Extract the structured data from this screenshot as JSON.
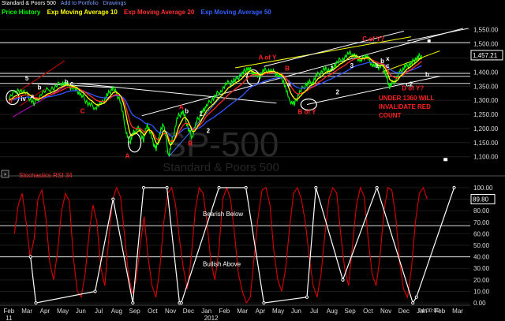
{
  "header": {
    "symbol_label": "Standard & Poors 500",
    "portfolio_link": "Add to Portfolio",
    "drawings_link": "Drawings"
  },
  "legend": [
    {
      "label": "Price History",
      "color": "#00ff00"
    },
    {
      "label": "Exp Moving Average 10",
      "color": "#ffff00"
    },
    {
      "label": "Exp Moving Average 20",
      "color": "#ff3030"
    },
    {
      "label": "Exp Moving Average 50",
      "color": "#3060ff"
    }
  ],
  "watermark": {
    "line1": "SP-500",
    "line2": "Standard & Poors 500"
  },
  "colors": {
    "price": "#00ff00",
    "ema10": "#ffff00",
    "ema20": "#ff2a2a",
    "ema50": "#3355ff",
    "stoch": "#dd0000",
    "wave": "#ffffff",
    "annot_red": "#ff2020"
  },
  "chart_data": [
    {
      "type": "line",
      "title": "Standard & Poors 500",
      "x_unit": "month index (0 = Feb 2011)",
      "x_tick_labels": [
        "Feb",
        "Mar",
        "Apr",
        "May",
        "Jun",
        "Jul",
        "Aug",
        "Sep",
        "Oct",
        "Nov",
        "Dec",
        "Jan",
        "Feb",
        "Mar",
        "Apr",
        "May",
        "Jun",
        "Jul",
        "Aug",
        "Sep",
        "Oct",
        "Nov",
        "Dec",
        "Jan",
        "Feb",
        "Mar"
      ],
      "year_labels": [
        {
          "label": "11",
          "x": 0
        },
        {
          "label": "2012",
          "x": 11
        }
      ],
      "y_ticks": [
        1100,
        1150,
        1200,
        1250,
        1300,
        1350,
        1400,
        1450,
        1500,
        1550
      ],
      "ylim": [
        1060,
        1580
      ],
      "xlim": [
        -0.5,
        25.7
      ],
      "last_value": "1,457.21",
      "series": [
        {
          "name": "Price History",
          "points": [
            [
              0,
              1310
            ],
            [
              0.5,
              1340
            ],
            [
              1,
              1320
            ],
            [
              1.4,
              1285
            ],
            [
              1.9,
              1330
            ],
            [
              2.5,
              1345
            ],
            [
              3,
              1365
            ],
            [
              3.3,
              1350
            ],
            [
              3.7,
              1340
            ],
            [
              4,
              1320
            ],
            [
              4.4,
              1290
            ],
            [
              4.8,
              1275
            ],
            [
              5.2,
              1290
            ],
            [
              5.5,
              1320
            ],
            [
              5.8,
              1345
            ],
            [
              6.2,
              1300
            ],
            [
              6.5,
              1200
            ],
            [
              6.7,
              1145
            ],
            [
              6.9,
              1180
            ],
            [
              7.2,
              1205
            ],
            [
              7.5,
              1160
            ],
            [
              7.7,
              1220
            ],
            [
              8,
              1155
            ],
            [
              8.2,
              1125
            ],
            [
              8.4,
              1180
            ],
            [
              8.6,
              1220
            ],
            [
              8.9,
              1105
            ],
            [
              9.1,
              1160
            ],
            [
              9.4,
              1240
            ],
            [
              9.7,
              1260
            ],
            [
              10,
              1200
            ],
            [
              10.2,
              1170
            ],
            [
              10.5,
              1230
            ],
            [
              10.8,
              1260
            ],
            [
              11,
              1280
            ],
            [
              11.4,
              1310
            ],
            [
              11.8,
              1335
            ],
            [
              12.2,
              1360
            ],
            [
              12.6,
              1370
            ],
            [
              13,
              1395
            ],
            [
              13.3,
              1415
            ],
            [
              13.6,
              1400
            ],
            [
              13.9,
              1380
            ],
            [
              14.2,
              1405
            ],
            [
              14.6,
              1405
            ],
            [
              15,
              1390
            ],
            [
              15.3,
              1370
            ],
            [
              15.6,
              1300
            ],
            [
              15.9,
              1285
            ],
            [
              16.2,
              1330
            ],
            [
              16.6,
              1360
            ],
            [
              16.9,
              1365
            ],
            [
              17.2,
              1390
            ],
            [
              17.6,
              1410
            ],
            [
              17.9,
              1405
            ],
            [
              18.2,
              1430
            ],
            [
              18.6,
              1450
            ],
            [
              19,
              1465
            ],
            [
              19.3,
              1455
            ],
            [
              19.6,
              1440
            ],
            [
              19.9,
              1460
            ],
            [
              20.2,
              1430
            ],
            [
              20.5,
              1415
            ],
            [
              20.8,
              1425
            ],
            [
              21,
              1390
            ],
            [
              21.2,
              1350
            ],
            [
              21.5,
              1370
            ],
            [
              21.8,
              1400
            ],
            [
              22.1,
              1420
            ],
            [
              22.4,
              1430
            ],
            [
              22.7,
              1450
            ],
            [
              23,
              1460
            ]
          ]
        },
        {
          "name": "Exp Moving Average 10",
          "smoothing": 0.18
        },
        {
          "name": "Exp Moving Average 20",
          "smoothing": 0.09
        },
        {
          "name": "Exp Moving Average 50",
          "smoothing": 0.04
        }
      ],
      "annotations": [
        {
          "text": "A",
          "x": 6.6,
          "y": 1095,
          "color": "#ff2020"
        },
        {
          "text": "C",
          "x": 4.1,
          "y": 1255,
          "color": "#ff2020"
        },
        {
          "text": "A",
          "x": 9.6,
          "y": 1268,
          "color": "#ff2020"
        },
        {
          "text": "B",
          "x": 10.1,
          "y": 1140,
          "color": "#ff2020"
        },
        {
          "text": "b",
          "x": 9.9,
          "y": 1255,
          "color": "#ffffff"
        },
        {
          "text": "1",
          "x": 10.7,
          "y": 1245,
          "color": "#ffffff"
        },
        {
          "text": "2",
          "x": 11.1,
          "y": 1185,
          "color": "#ffffff"
        },
        {
          "text": "A of Y",
          "x": 14.4,
          "y": 1445,
          "color": "#ff2020"
        },
        {
          "text": "B",
          "x": 15.5,
          "y": 1405,
          "color": "#ff2020"
        },
        {
          "text": "B of Y",
          "x": 16.6,
          "y": 1252,
          "color": "#ff2020"
        },
        {
          "text": "C of Y?",
          "x": 20.3,
          "y": 1510,
          "color": "#ff2020"
        },
        {
          "text": "D of Y?",
          "x": 22.5,
          "y": 1335,
          "color": "#ff2020"
        },
        {
          "text": "3",
          "x": 19.1,
          "y": 1415,
          "color": "#ffffff"
        },
        {
          "text": "x",
          "x": 21.1,
          "y": 1440,
          "color": "#ffffff"
        },
        {
          "text": "a",
          "x": 20.5,
          "y": 1415,
          "color": "#ffffff"
        },
        {
          "text": "b",
          "x": 20.8,
          "y": 1432,
          "color": "#ffffff"
        },
        {
          "text": "c",
          "x": 21.1,
          "y": 1415,
          "color": "#ffffff"
        },
        {
          "text": "2",
          "x": 18.3,
          "y": 1322,
          "color": "#ffffff"
        },
        {
          "text": "1",
          "x": 18.0,
          "y": 1405,
          "color": "#ffffff"
        },
        {
          "text": "c2",
          "x": 22.3,
          "y": 1350,
          "color": "#ffffff"
        },
        {
          "text": "b",
          "x": 23.3,
          "y": 1385,
          "color": "#ffffff"
        },
        {
          "text": "a",
          "x": 15.6,
          "y": 1350,
          "color": "#ffffff"
        },
        {
          "text": "a",
          "x": 1.3,
          "y": 1308,
          "color": "#ffffff"
        },
        {
          "text": "b",
          "x": 1.7,
          "y": 1338,
          "color": "#ffffff"
        },
        {
          "text": "5",
          "x": 1.0,
          "y": 1370,
          "color": "#ffffff"
        },
        {
          "text": "iv",
          "x": 0.8,
          "y": 1298,
          "color": "#ffffff"
        },
        {
          "text": "ii",
          "x": 0.1,
          "y": 1290,
          "color": "#ff2020"
        },
        {
          "text": "b",
          "x": 3.2,
          "y": 1358,
          "color": "#ffffff"
        },
        {
          "text": "c",
          "x": 3.5,
          "y": 1352,
          "color": "#ffffff"
        }
      ],
      "note": [
        "UNDER 1360 WILL",
        "INVALIDATE RED",
        "COUNT"
      ]
    },
    {
      "type": "line",
      "title": "Stochastics RSI 34",
      "ylim": [
        -2,
        102
      ],
      "y_ticks": [
        0,
        10,
        20,
        30,
        40,
        50,
        60,
        70,
        80,
        90,
        100
      ],
      "y_tick_labels": [
        "0.00",
        "10.00",
        "20.00",
        "30.00",
        "40.00",
        "50.00",
        "60.00",
        "70.00",
        "80.00",
        "90.00",
        "100.00"
      ],
      "last_value": "89.80",
      "levels": [
        {
          "value": 67,
          "label": "Bearish Below"
        },
        {
          "value": 40,
          "label": "Bullish Above"
        }
      ],
      "series": [
        {
          "name": "Stochastics RSI 34",
          "values": [
            60,
            85,
            95,
            70,
            40,
            55,
            90,
            98,
            75,
            35,
            20,
            45,
            80,
            95,
            88,
            40,
            10,
            5,
            25,
            60,
            85,
            70,
            30,
            15,
            55,
            90,
            100,
            92,
            60,
            25,
            8,
            20,
            50,
            75,
            40,
            15,
            5,
            30,
            70,
            95,
            100,
            85,
            55,
            30,
            12,
            40,
            80,
            100,
            95,
            70,
            35,
            20,
            45,
            90,
            100,
            90,
            60,
            25,
            10,
            0,
            5,
            40,
            75,
            98,
            100,
            85,
            45,
            20,
            10,
            30,
            65,
            95,
            100,
            90,
            70,
            40,
            15,
            5,
            25,
            60,
            90,
            100,
            95,
            60,
            30,
            15,
            50,
            85,
            100,
            92,
            55,
            25,
            15,
            40,
            80,
            100,
            98,
            75,
            35,
            12,
            5,
            30,
            70,
            95,
            100,
            90
          ]
        },
        {
          "name": "wave lines",
          "points": [
            [
              1.2,
              40
            ],
            [
              1.5,
              0
            ],
            [
              4.8,
              10
            ],
            [
              5.8,
              90
            ],
            [
              6.9,
              0
            ],
            [
              7.5,
              100
            ],
            [
              8.8,
              100
            ],
            [
              9.5,
              0
            ],
            [
              9.6,
              0
            ],
            [
              11.7,
              100
            ],
            [
              13.2,
              100
            ],
            [
              14.2,
              0
            ],
            [
              16.6,
              5
            ],
            [
              17.1,
              100
            ],
            [
              18.6,
              20
            ],
            [
              20.5,
              100
            ],
            [
              22.5,
              0
            ],
            [
              22.7,
              5
            ],
            [
              24.8,
              100
            ]
          ]
        }
      ]
    }
  ],
  "stoch_title": "Stochastics RSI 34",
  "time_label": "04:00:00"
}
